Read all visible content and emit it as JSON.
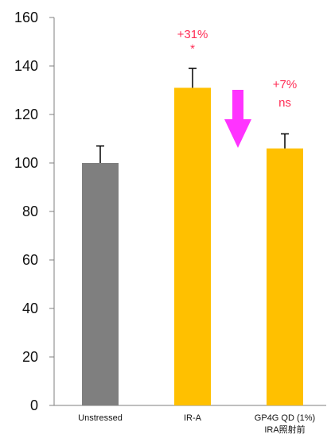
{
  "chart_data": {
    "type": "bar",
    "title": "",
    "xlabel": "",
    "ylabel": "",
    "ylim": [
      0,
      160
    ],
    "yticks": [
      0,
      20,
      40,
      60,
      80,
      100,
      120,
      140,
      160
    ],
    "grid": false,
    "categories": [
      {
        "line1": "Unstressed",
        "line2": ""
      },
      {
        "line1": "IR-A",
        "line2": ""
      },
      {
        "line1": "GP4G QD (1%)",
        "line2": "IRA照射前"
      }
    ],
    "values": [
      100,
      131,
      106
    ],
    "errors": [
      7,
      8,
      6
    ],
    "bar_colors": [
      "#7f7f7f",
      "#ffc000",
      "#ffc000"
    ],
    "annotations": [
      {
        "bar": 1,
        "line1": "+31%",
        "line2": "*"
      },
      {
        "bar": 2,
        "line1": "+7%",
        "line2": "ns"
      }
    ],
    "annotation_color": "#ff2d55",
    "arrow": {
      "color": "#ff33ff",
      "direction": "down"
    }
  }
}
